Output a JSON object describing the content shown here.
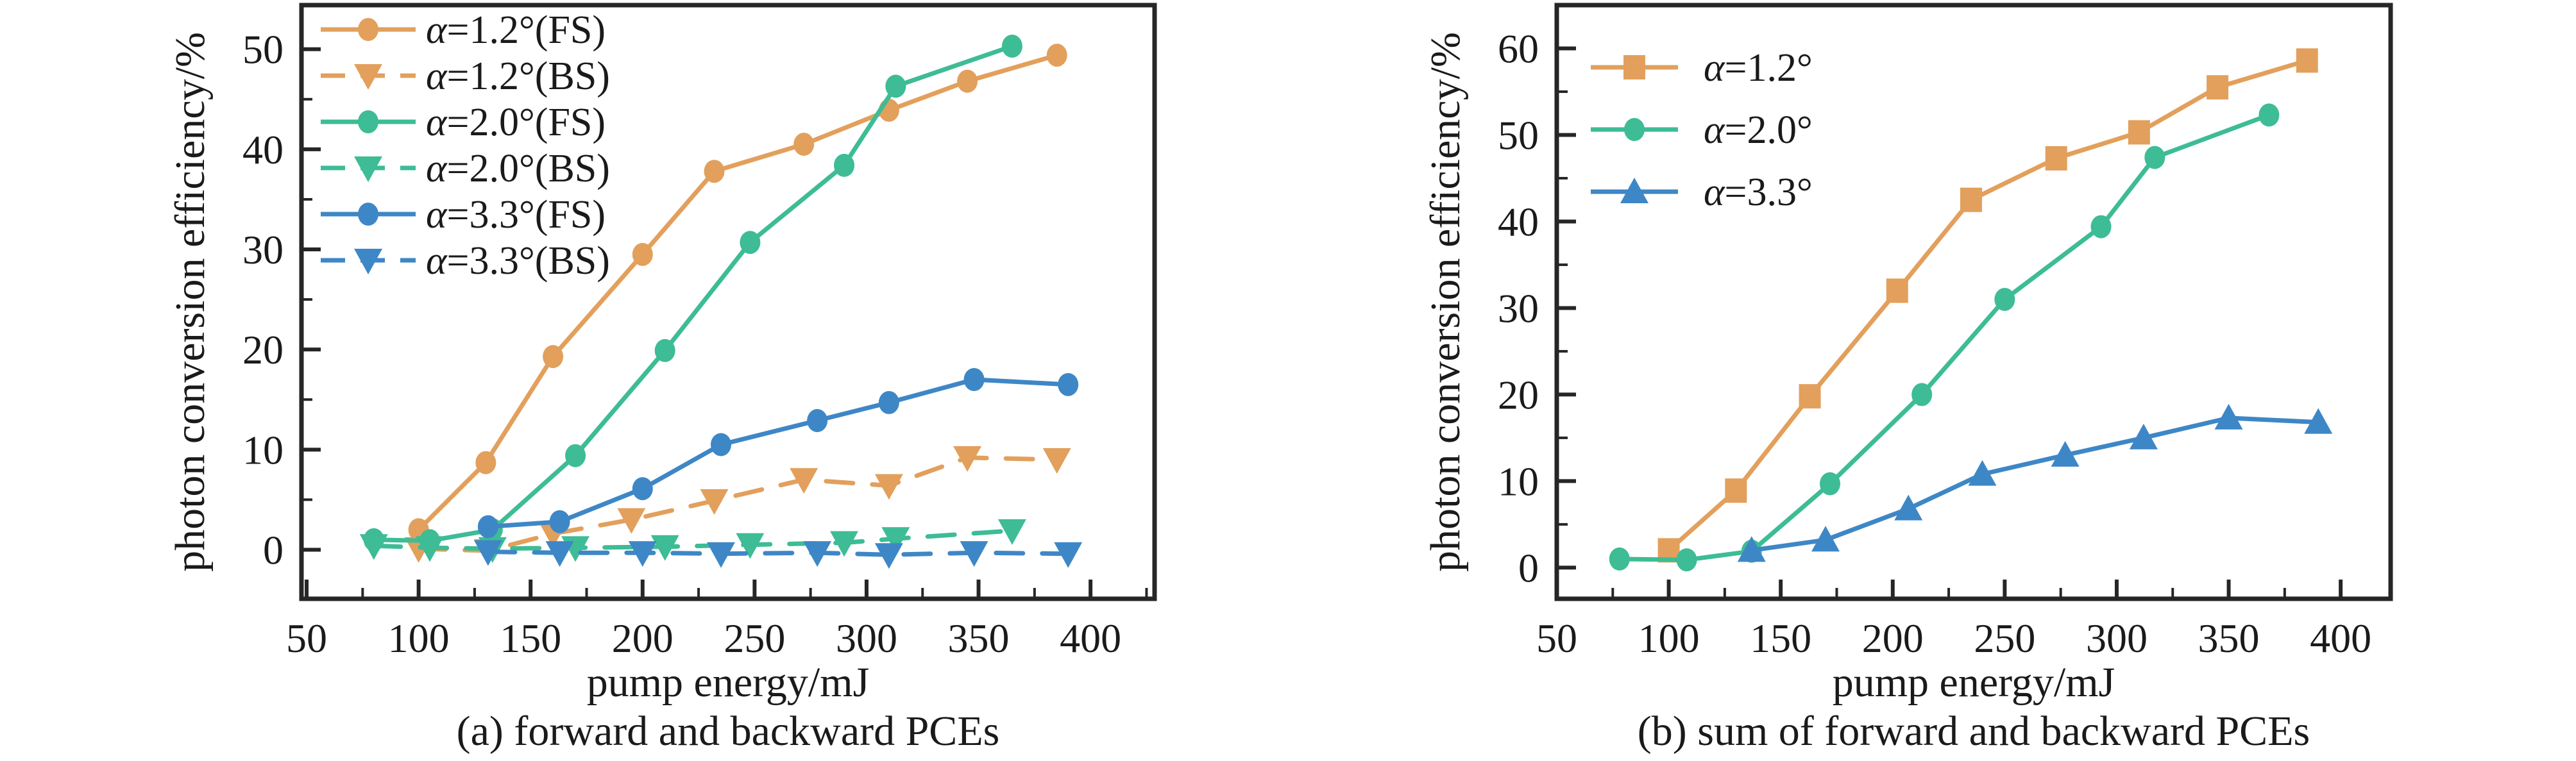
{
  "figure": {
    "background": "#ffffff",
    "axis_color": "#262626",
    "palette": {
      "orange": "#E2A05C",
      "green": "#3DBC95",
      "blue": "#3E87C6"
    }
  },
  "chart_data": [
    {
      "id": "a",
      "type": "line",
      "caption": "(a) forward and backward PCEs",
      "xlabel": "pump energy/mJ",
      "ylabel": "photon conversion efficiency/%",
      "xlim": [
        47.7,
        428.6
      ],
      "ylim": [
        -4.9,
        54.4
      ],
      "xticks": [
        50,
        100,
        150,
        200,
        250,
        300,
        350,
        400
      ],
      "yticks": [
        0,
        10,
        20,
        30,
        40,
        50
      ],
      "minor_xticks": [
        75,
        125,
        175,
        225,
        275,
        325,
        375,
        425
      ],
      "minor_yticks": [
        5,
        15,
        25,
        35,
        45
      ],
      "grid": false,
      "legend_position": "top-left",
      "series": [
        {
          "name": "α=1.2°(FS)",
          "color": "orange",
          "marker": "circle",
          "line": "solid",
          "x": [
            100,
            130,
            160,
            200,
            232,
            272,
            310,
            345,
            385
          ],
          "y": [
            2,
            8.7,
            19.3,
            29.5,
            37.8,
            40.5,
            43.9,
            46.8,
            49.4
          ]
        },
        {
          "name": "α=1.2°(BS)",
          "color": "orange",
          "marker": "triangle_down",
          "line": "dashed",
          "x": [
            100,
            131,
            160,
            195,
            232,
            272,
            310,
            345,
            385
          ],
          "y": [
            0.1,
            -0.1,
            1.6,
            3.0,
            4.9,
            7.0,
            6.4,
            9.2,
            9.0
          ]
        },
        {
          "name": "α=2.0°(FS)",
          "color": "green",
          "marker": "circle",
          "line": "solid",
          "x": [
            80,
            105,
            133,
            170,
            210,
            248,
            290,
            313,
            365
          ],
          "y": [
            1.0,
            0.9,
            2.0,
            9.4,
            19.9,
            30.7,
            38.4,
            46.3,
            50.3
          ]
        },
        {
          "name": "α=2.0°(BS)",
          "color": "green",
          "marker": "triangle_down",
          "line": "dashed",
          "x": [
            80,
            105,
            133,
            170,
            210,
            248,
            290,
            313,
            365
          ],
          "y": [
            0.4,
            0.2,
            0.1,
            0.2,
            0.3,
            0.5,
            0.7,
            1.1,
            1.9
          ]
        },
        {
          "name": "α=3.3°(FS)",
          "color": "blue",
          "marker": "circle",
          "line": "solid",
          "x": [
            131,
            163,
            200,
            235,
            278,
            310,
            348,
            390
          ],
          "y": [
            2.3,
            2.8,
            6.1,
            10.5,
            12.9,
            14.7,
            17.0,
            16.5
          ]
        },
        {
          "name": "α=3.3°(BS)",
          "color": "blue",
          "marker": "triangle_down",
          "line": "dashed",
          "x": [
            131,
            163,
            200,
            235,
            278,
            310,
            348,
            390
          ],
          "y": [
            -0.2,
            -0.3,
            -0.3,
            -0.4,
            -0.3,
            -0.5,
            -0.3,
            -0.4
          ]
        }
      ]
    },
    {
      "id": "b",
      "type": "line",
      "caption": "(b) sum of forward and backward PCEs",
      "xlabel": "pump energy/mJ",
      "ylabel": "photon conversion efficiency/%",
      "xlim": [
        50,
        422.3
      ],
      "ylim": [
        -3.6,
        65.0
      ],
      "xticks": [
        50,
        100,
        150,
        200,
        250,
        300,
        350,
        400
      ],
      "yticks": [
        0,
        10,
        20,
        30,
        40,
        50,
        60
      ],
      "minor_xticks": [
        75,
        125,
        175,
        225,
        275,
        325,
        375
      ],
      "minor_yticks": [
        5,
        15,
        25,
        35,
        45,
        55
      ],
      "grid": false,
      "legend_position": "top-left",
      "series": [
        {
          "name": "α=1.2°",
          "color": "orange",
          "marker": "square",
          "line": "solid",
          "x": [
            100,
            130,
            163,
            202,
            235,
            273,
            310,
            345,
            385
          ],
          "y": [
            2.0,
            8.9,
            19.8,
            32.0,
            42.5,
            47.3,
            50.3,
            55.5,
            58.6
          ]
        },
        {
          "name": "α=2.0°",
          "color": "green",
          "marker": "circle",
          "line": "solid",
          "x": [
            78,
            108,
            137,
            172,
            213,
            250,
            293,
            317,
            368
          ],
          "y": [
            1.0,
            0.9,
            1.9,
            9.7,
            20.0,
            31.0,
            39.4,
            47.4,
            52.3
          ]
        },
        {
          "name": "α=3.3°",
          "color": "blue",
          "marker": "triangle_up",
          "line": "solid",
          "x": [
            137,
            170,
            207,
            240,
            277,
            312,
            350,
            390
          ],
          "y": [
            2.0,
            3.2,
            6.8,
            10.8,
            13.0,
            15.0,
            17.3,
            16.8
          ]
        }
      ]
    }
  ]
}
